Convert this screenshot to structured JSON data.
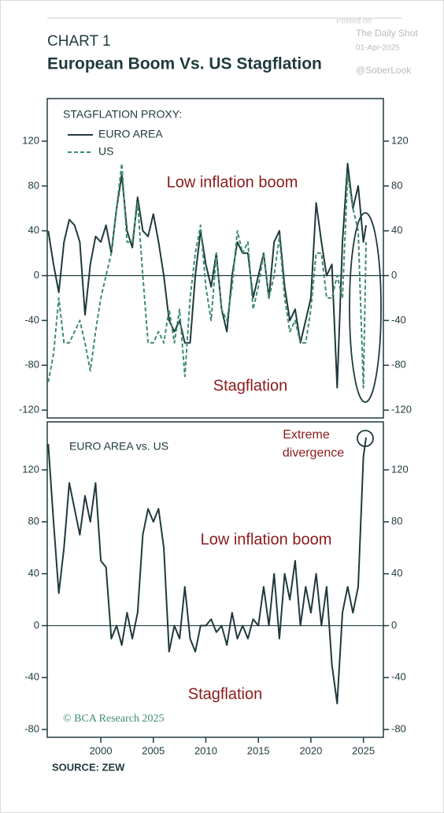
{
  "header": {
    "label": "CHART 1",
    "title": "European Boom Vs. US Stagflation",
    "watermark": [
      "Posted on",
      "The Daily Shot",
      "01-Apr-2025",
      "@SoberLook"
    ]
  },
  "source": "SOURCE: ZEW",
  "credit": "© BCA Research 2025",
  "chart_data": [
    {
      "type": "line",
      "legend_title": "STAGFLATION PROXY:",
      "annotations": [
        "Low inflation boom",
        "Stagflation"
      ],
      "xlim": [
        1994.9,
        2026.9
      ],
      "ylim": [
        -127,
        158
      ],
      "yticks": [
        -120,
        -80,
        -40,
        0,
        40,
        80,
        120
      ],
      "zero_line": true,
      "x": [
        1995,
        1995.5,
        1996,
        1996.5,
        1997,
        1997.5,
        1998,
        1998.5,
        1999,
        1999.5,
        2000,
        2000.5,
        2001,
        2001.5,
        2002,
        2002.5,
        2003,
        2003.5,
        2004,
        2004.5,
        2005,
        2005.5,
        2006,
        2006.5,
        2007,
        2007.5,
        2008,
        2008.5,
        2009,
        2009.5,
        2010,
        2010.5,
        2011,
        2011.5,
        2012,
        2012.5,
        2013,
        2013.5,
        2014,
        2014.5,
        2015,
        2015.5,
        2016,
        2016.5,
        2017,
        2017.5,
        2018,
        2018.5,
        2019,
        2019.5,
        2020,
        2020.5,
        2021,
        2021.5,
        2022,
        2022.5,
        2023,
        2023.5,
        2024,
        2024.5,
        2025,
        2025.25
      ],
      "series": [
        {
          "name": "EURO AREA",
          "color": "#1f3a3d",
          "dash": false,
          "values": [
            40,
            10,
            -15,
            30,
            50,
            45,
            30,
            -35,
            10,
            35,
            30,
            45,
            20,
            60,
            90,
            40,
            25,
            70,
            40,
            35,
            55,
            30,
            0,
            -40,
            -50,
            -40,
            -60,
            -60,
            0,
            40,
            10,
            -10,
            20,
            -30,
            -50,
            0,
            30,
            20,
            20,
            -20,
            0,
            20,
            -20,
            30,
            40,
            -10,
            -40,
            -30,
            -60,
            -40,
            -20,
            65,
            30,
            0,
            10,
            -100,
            30,
            100,
            60,
            80,
            30,
            45
          ]
        },
        {
          "name": "US",
          "color": "#3d8c70",
          "dash": true,
          "values": [
            -95,
            -70,
            -20,
            -60,
            -60,
            -50,
            -40,
            -60,
            -85,
            -50,
            -20,
            0,
            20,
            60,
            100,
            30,
            30,
            65,
            0,
            -60,
            -60,
            -50,
            -60,
            -30,
            -60,
            -30,
            -90,
            -20,
            20,
            45,
            -10,
            -40,
            20,
            -30,
            -40,
            -10,
            40,
            20,
            30,
            -30,
            -10,
            20,
            -20,
            0,
            35,
            -20,
            -50,
            -40,
            -60,
            -60,
            -30,
            20,
            20,
            -20,
            -20,
            0,
            -20,
            90,
            60,
            40,
            -100,
            30
          ]
        }
      ]
    },
    {
      "type": "line",
      "subtitle": "EURO AREA vs. US",
      "annotations": [
        "Low inflation boom",
        "Stagflation",
        "Extreme",
        "divergence"
      ],
      "xlim": [
        1994.9,
        2026.9
      ],
      "xticks": [
        2000,
        2005,
        2010,
        2015,
        2020,
        2025
      ],
      "ylim": [
        -86,
        157
      ],
      "yticks": [
        -80,
        -40,
        0,
        40,
        80,
        120
      ],
      "zero_line": true,
      "x": [
        1995,
        1995.5,
        1996,
        1996.5,
        1997,
        1997.5,
        1998,
        1998.5,
        1999,
        1999.5,
        2000,
        2000.5,
        2001,
        2001.5,
        2002,
        2002.5,
        2003,
        2003.5,
        2004,
        2004.5,
        2005,
        2005.5,
        2006,
        2006.5,
        2007,
        2007.5,
        2008,
        2008.5,
        2009,
        2009.5,
        2010,
        2010.5,
        2011,
        2011.5,
        2012,
        2012.5,
        2013,
        2013.5,
        2014,
        2014.5,
        2015,
        2015.5,
        2016,
        2016.5,
        2017,
        2017.5,
        2018,
        2018.5,
        2019,
        2019.5,
        2020,
        2020.5,
        2021,
        2021.5,
        2022,
        2022.5,
        2023,
        2023.5,
        2024,
        2024.5,
        2025,
        2025.25
      ],
      "series": [
        {
          "name": "EURO AREA vs. US",
          "color": "#1f3a3d",
          "dash": false,
          "values": [
            140,
            80,
            25,
            60,
            110,
            90,
            70,
            100,
            80,
            110,
            50,
            45,
            -10,
            0,
            -15,
            10,
            -10,
            10,
            70,
            90,
            80,
            90,
            60,
            -20,
            0,
            -10,
            30,
            -10,
            -20,
            0,
            0,
            5,
            -5,
            0,
            -15,
            10,
            -10,
            0,
            -10,
            5,
            0,
            30,
            0,
            40,
            -10,
            40,
            20,
            50,
            0,
            30,
            10,
            40,
            0,
            30,
            -30,
            -60,
            10,
            30,
            10,
            30,
            130,
            145
          ]
        }
      ]
    }
  ]
}
